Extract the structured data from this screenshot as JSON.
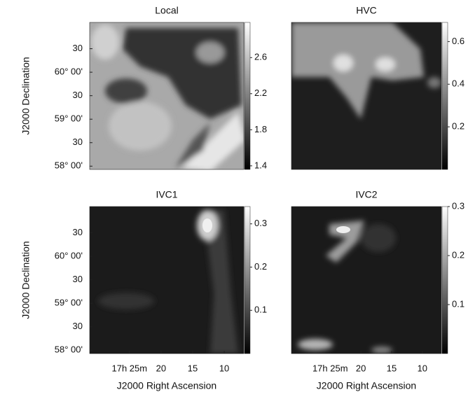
{
  "chart_data": [
    {
      "type": "heatmap",
      "title": "Local",
      "y_label": "J2000 Declination",
      "ylim": [
        57.93,
        61.06
      ],
      "yticks": [
        {
          "value": 60.5,
          "label": "30"
        },
        {
          "value": 60,
          "label": "60° 00'"
        },
        {
          "value": 59.5,
          "label": "30"
        },
        {
          "value": 59,
          "label": "59° 00'"
        },
        {
          "value": 58.5,
          "label": "30"
        },
        {
          "value": 58,
          "label": "58° 00'"
        }
      ],
      "zlim": [
        1.36,
        2.99
      ],
      "zticks": [
        {
          "value": 1.4,
          "label": "1.4"
        },
        {
          "value": 1.8,
          "label": "1.8"
        },
        {
          "value": 2.2,
          "label": "2.2"
        },
        {
          "value": 2.6,
          "label": "2.6"
        }
      ]
    },
    {
      "type": "heatmap",
      "title": "HVC",
      "zlim": [
        0,
        0.69
      ],
      "zticks": [
        0.2,
        0.4,
        0.6
      ]
    },
    {
      "type": "heatmap",
      "title": "IVC1",
      "y_label": "J2000 Declination",
      "x_label": "J2000 Right Ascension",
      "ylim": [
        57.93,
        61.06
      ],
      "yticks": [
        {
          "value": 60.5,
          "label": "30"
        },
        {
          "value": 60,
          "label": "60° 00'"
        },
        {
          "value": 59.5,
          "label": "30"
        },
        {
          "value": 59,
          "label": "59° 00'"
        },
        {
          "value": 58.5,
          "label": "30"
        },
        {
          "value": 58,
          "label": "58° 00'"
        }
      ],
      "xlim": [
        31.3,
        6.9
      ],
      "xticks": [
        {
          "value": 25,
          "label": "17h 25m"
        },
        20,
        15,
        10
      ],
      "zlim": [
        0,
        0.34
      ],
      "zticks": [
        0.1,
        0.2,
        0.3
      ]
    },
    {
      "type": "heatmap",
      "title": "IVC2",
      "x_label": "J2000 Right Ascension",
      "xlim": [
        31.3,
        6.9
      ],
      "xticks": [
        {
          "value": 25,
          "label": "17h 25m"
        },
        20,
        15,
        10
      ],
      "zlim": [
        0,
        0.3
      ],
      "zticks": [
        0.1,
        0.2,
        0.3
      ]
    }
  ]
}
